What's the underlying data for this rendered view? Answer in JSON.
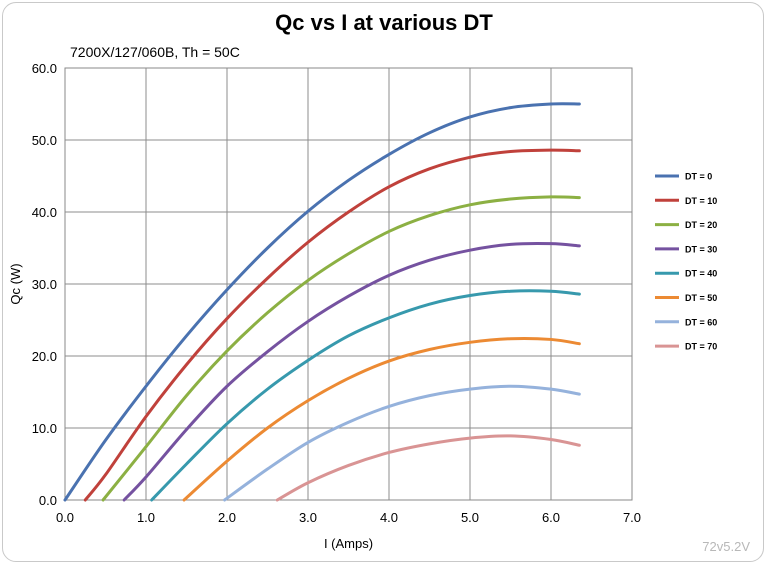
{
  "chart_data": {
    "type": "line",
    "title": "Qc vs I at various DT",
    "subtitle": "7200X/127/060B, Th = 50C",
    "xlabel": "I (Amps)",
    "ylabel": "Qc (W)",
    "xlim": [
      0,
      7
    ],
    "ylim": [
      0,
      60
    ],
    "x_ticks": [
      "0.0",
      "1.0",
      "2.0",
      "3.0",
      "4.0",
      "5.0",
      "6.0",
      "7.0"
    ],
    "y_ticks": [
      "0.0",
      "10.0",
      "20.0",
      "30.0",
      "40.0",
      "50.0",
      "60.0"
    ],
    "grid": true,
    "legend_position": "right",
    "x": [
      0.0,
      0.5,
      1.0,
      1.5,
      2.0,
      2.5,
      3.0,
      3.5,
      4.0,
      4.5,
      5.0,
      5.5,
      6.0,
      6.35
    ],
    "series": [
      {
        "name": "DT = 0",
        "color": "#4a72b0",
        "x": [
          0.0,
          0.5,
          1.0,
          1.5,
          2.0,
          2.5,
          3.0,
          3.5,
          4.0,
          4.5,
          5.0,
          5.5,
          6.0,
          6.35
        ],
        "values": [
          0.0,
          8.3,
          15.8,
          22.8,
          29.2,
          35.0,
          40.1,
          44.4,
          48.0,
          51.0,
          53.2,
          54.5,
          55.0,
          55.0
        ]
      },
      {
        "name": "DT = 10",
        "color": "#c0413b",
        "x": [
          0.25,
          0.5,
          1.0,
          1.5,
          2.0,
          2.5,
          3.0,
          3.5,
          4.0,
          4.5,
          5.0,
          5.5,
          6.0,
          6.35
        ],
        "values": [
          0.0,
          3.5,
          11.6,
          18.8,
          25.2,
          30.8,
          35.8,
          40.0,
          43.5,
          46.0,
          47.6,
          48.4,
          48.6,
          48.5
        ]
      },
      {
        "name": "DT = 20",
        "color": "#8cb043",
        "x": [
          0.47,
          1.0,
          1.5,
          2.0,
          2.5,
          3.0,
          3.5,
          4.0,
          4.5,
          5.0,
          5.5,
          6.0,
          6.35
        ],
        "values": [
          0.0,
          7.4,
          14.5,
          20.7,
          26.0,
          30.5,
          34.2,
          37.3,
          39.5,
          41.0,
          41.8,
          42.1,
          42.0
        ]
      },
      {
        "name": "DT = 30",
        "color": "#7552a0",
        "x": [
          0.73,
          1.0,
          1.5,
          2.0,
          2.5,
          3.0,
          3.5,
          4.0,
          4.5,
          5.0,
          5.5,
          6.0,
          6.35
        ],
        "values": [
          0.0,
          3.2,
          9.8,
          15.8,
          20.6,
          24.8,
          28.3,
          31.2,
          33.3,
          34.7,
          35.5,
          35.6,
          35.3
        ]
      },
      {
        "name": "DT = 40",
        "color": "#3799ad",
        "x": [
          1.07,
          1.5,
          2.0,
          2.5,
          3.0,
          3.5,
          4.0,
          4.5,
          5.0,
          5.5,
          6.0,
          6.35
        ],
        "values": [
          0.0,
          5.0,
          10.6,
          15.4,
          19.4,
          22.8,
          25.3,
          27.2,
          28.4,
          29.0,
          29.0,
          28.6
        ]
      },
      {
        "name": "DT = 50",
        "color": "#ec8a33",
        "x": [
          1.47,
          2.0,
          2.5,
          3.0,
          3.5,
          4.0,
          4.5,
          5.0,
          5.5,
          6.0,
          6.35
        ],
        "values": [
          0.0,
          5.4,
          10.0,
          13.8,
          16.9,
          19.3,
          20.9,
          21.9,
          22.4,
          22.3,
          21.7
        ]
      },
      {
        "name": "DT = 60",
        "color": "#95b2dc",
        "x": [
          1.97,
          2.5,
          3.0,
          3.5,
          4.0,
          4.5,
          5.0,
          5.5,
          6.0,
          6.35
        ],
        "values": [
          0.0,
          4.3,
          8.0,
          10.8,
          13.0,
          14.5,
          15.4,
          15.8,
          15.4,
          14.7
        ]
      },
      {
        "name": "DT = 70",
        "color": "#d99494",
        "x": [
          2.62,
          3.0,
          3.5,
          4.0,
          4.5,
          5.0,
          5.5,
          6.0,
          6.35
        ],
        "values": [
          0.0,
          2.4,
          4.8,
          6.6,
          7.8,
          8.6,
          8.9,
          8.4,
          7.6
        ]
      }
    ]
  },
  "version_label": "72v5.2V"
}
